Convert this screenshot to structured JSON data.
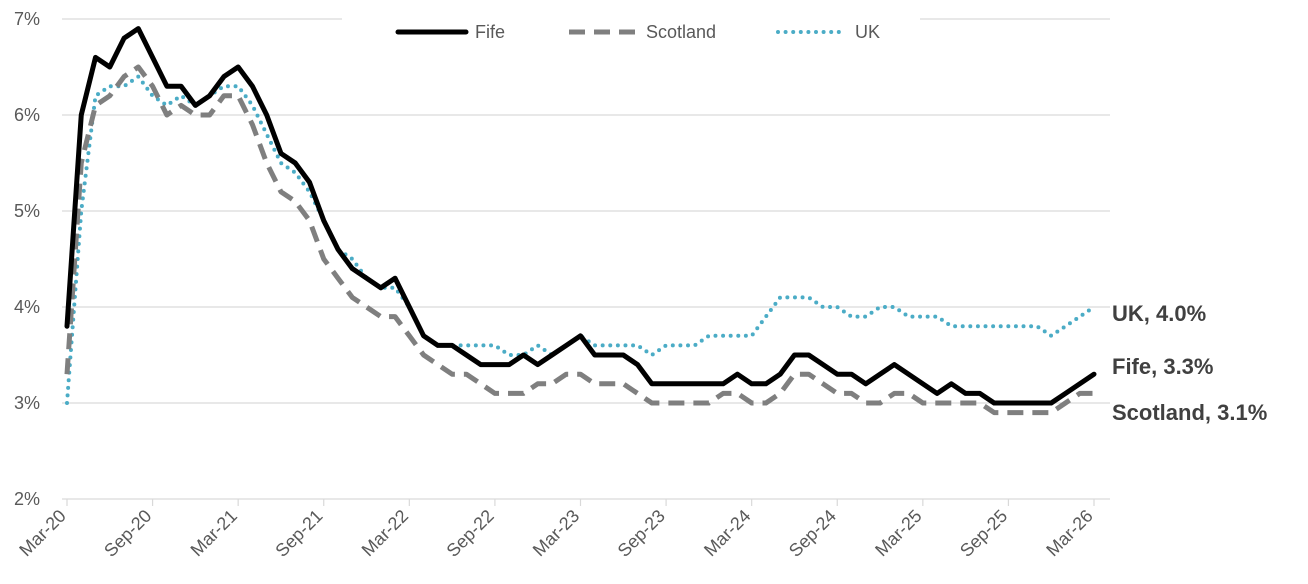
{
  "chart_data": {
    "type": "line",
    "title": "",
    "xlabel": "",
    "ylabel": "",
    "ylim": [
      2,
      7
    ],
    "y_ticks": [
      "2%",
      "3%",
      "4%",
      "5%",
      "6%",
      "7%"
    ],
    "x_ticks": [
      "Mar-20",
      "Sep-20",
      "Mar-21",
      "Sep-21",
      "Mar-22",
      "Sep-22",
      "Mar-23",
      "Sep-23",
      "Mar-24",
      "Sep-24",
      "Mar-25",
      "Sep-25",
      "Mar-26"
    ],
    "x_range": [
      "2020-03",
      "2026-03"
    ],
    "grid": "horizontal",
    "legend": "top-center",
    "colors": {
      "Fife": "#000000",
      "Scotland": "#7f7f7f",
      "UK": "#4bacc6",
      "grid": "#d9d9d9",
      "text": "#595959"
    },
    "series": [
      {
        "name": "Fife",
        "style": "solid",
        "x": [
          "2020-03",
          "2020-04",
          "2020-05",
          "2020-06",
          "2020-07",
          "2020-08",
          "2020-09",
          "2020-10",
          "2020-11",
          "2020-12",
          "2021-01",
          "2021-02",
          "2021-03",
          "2021-04",
          "2021-05",
          "2021-06",
          "2021-07",
          "2021-08",
          "2021-09",
          "2021-10",
          "2021-11",
          "2021-12",
          "2022-01",
          "2022-02",
          "2022-03",
          "2022-04",
          "2022-05",
          "2022-06",
          "2022-07",
          "2022-08",
          "2022-09",
          "2022-10",
          "2022-11",
          "2022-12",
          "2023-01",
          "2023-02",
          "2023-03",
          "2023-04",
          "2023-05",
          "2023-06",
          "2023-07",
          "2023-08",
          "2023-09",
          "2023-10",
          "2023-11",
          "2023-12",
          "2024-01",
          "2024-02",
          "2024-03",
          "2024-04",
          "2024-05",
          "2024-06",
          "2024-07",
          "2024-08",
          "2024-09",
          "2024-10",
          "2024-11",
          "2024-12",
          "2025-01",
          "2025-02",
          "2025-03",
          "2025-04",
          "2025-05",
          "2025-06",
          "2025-07",
          "2025-08",
          "2025-09",
          "2025-10",
          "2025-11",
          "2025-12",
          "2026-01",
          "2026-02",
          "2026-03"
        ],
        "values": [
          3.8,
          6.0,
          6.6,
          6.5,
          6.8,
          6.9,
          6.6,
          6.3,
          6.3,
          6.1,
          6.2,
          6.4,
          6.5,
          6.3,
          6.0,
          5.6,
          5.5,
          5.3,
          4.9,
          4.6,
          4.4,
          4.3,
          4.2,
          4.3,
          4.0,
          3.7,
          3.6,
          3.6,
          3.5,
          3.4,
          3.4,
          3.4,
          3.5,
          3.4,
          3.5,
          3.6,
          3.7,
          3.5,
          3.5,
          3.5,
          3.4,
          3.2,
          3.2,
          3.2,
          3.2,
          3.2,
          3.2,
          3.3,
          3.2,
          3.2,
          3.3,
          3.5,
          3.5,
          3.4,
          3.3,
          3.3,
          3.2,
          3.3,
          3.4,
          3.3,
          3.2,
          3.1,
          3.2,
          3.1,
          3.1,
          3.0,
          3.0,
          3.0,
          3.0,
          3.0,
          3.1,
          3.2,
          3.3
        ],
        "end_label": "Fife, 3.3%"
      },
      {
        "name": "Scotland",
        "style": "dashed",
        "x": [
          "2020-03",
          "2020-04",
          "2020-05",
          "2020-06",
          "2020-07",
          "2020-08",
          "2020-09",
          "2020-10",
          "2020-11",
          "2020-12",
          "2021-01",
          "2021-02",
          "2021-03",
          "2021-04",
          "2021-05",
          "2021-06",
          "2021-07",
          "2021-08",
          "2021-09",
          "2021-10",
          "2021-11",
          "2021-12",
          "2022-01",
          "2022-02",
          "2022-03",
          "2022-04",
          "2022-05",
          "2022-06",
          "2022-07",
          "2022-08",
          "2022-09",
          "2022-10",
          "2022-11",
          "2022-12",
          "2023-01",
          "2023-02",
          "2023-03",
          "2023-04",
          "2023-05",
          "2023-06",
          "2023-07",
          "2023-08",
          "2023-09",
          "2023-10",
          "2023-11",
          "2023-12",
          "2024-01",
          "2024-02",
          "2024-03",
          "2024-04",
          "2024-05",
          "2024-06",
          "2024-07",
          "2024-08",
          "2024-09",
          "2024-10",
          "2024-11",
          "2024-12",
          "2025-01",
          "2025-02",
          "2025-03",
          "2025-04",
          "2025-05",
          "2025-06",
          "2025-07",
          "2025-08",
          "2025-09",
          "2025-10",
          "2025-11",
          "2025-12",
          "2026-01",
          "2026-02",
          "2026-03"
        ],
        "values": [
          3.3,
          5.5,
          6.1,
          6.2,
          6.4,
          6.5,
          6.3,
          6.0,
          6.1,
          6.0,
          6.0,
          6.2,
          6.2,
          5.9,
          5.5,
          5.2,
          5.1,
          4.9,
          4.5,
          4.3,
          4.1,
          4.0,
          3.9,
          3.9,
          3.7,
          3.5,
          3.4,
          3.3,
          3.3,
          3.2,
          3.1,
          3.1,
          3.1,
          3.2,
          3.2,
          3.3,
          3.3,
          3.2,
          3.2,
          3.2,
          3.1,
          3.0,
          3.0,
          3.0,
          3.0,
          3.0,
          3.1,
          3.1,
          3.0,
          3.0,
          3.1,
          3.3,
          3.3,
          3.2,
          3.1,
          3.1,
          3.0,
          3.0,
          3.1,
          3.1,
          3.0,
          3.0,
          3.0,
          3.0,
          3.0,
          2.9,
          2.9,
          2.9,
          2.9,
          2.9,
          3.0,
          3.1,
          3.1
        ],
        "end_label": "Scotland, 3.1%"
      },
      {
        "name": "UK",
        "style": "dotted",
        "x": [
          "2020-03",
          "2020-04",
          "2020-05",
          "2020-06",
          "2020-07",
          "2020-08",
          "2020-09",
          "2020-10",
          "2020-11",
          "2020-12",
          "2021-01",
          "2021-02",
          "2021-03",
          "2021-04",
          "2021-05",
          "2021-06",
          "2021-07",
          "2021-08",
          "2021-09",
          "2021-10",
          "2021-11",
          "2021-12",
          "2022-01",
          "2022-02",
          "2022-03",
          "2022-04",
          "2022-05",
          "2022-06",
          "2022-07",
          "2022-08",
          "2022-09",
          "2022-10",
          "2022-11",
          "2022-12",
          "2023-01",
          "2023-02",
          "2023-03",
          "2023-04",
          "2023-05",
          "2023-06",
          "2023-07",
          "2023-08",
          "2023-09",
          "2023-10",
          "2023-11",
          "2023-12",
          "2024-01",
          "2024-02",
          "2024-03",
          "2024-04",
          "2024-05",
          "2024-06",
          "2024-07",
          "2024-08",
          "2024-09",
          "2024-10",
          "2024-11",
          "2024-12",
          "2025-01",
          "2025-02",
          "2025-03",
          "2025-04",
          "2025-05",
          "2025-06",
          "2025-07",
          "2025-08",
          "2025-09",
          "2025-10",
          "2025-11",
          "2025-12",
          "2026-01",
          "2026-02",
          "2026-03"
        ],
        "values": [
          3.0,
          5.0,
          6.2,
          6.3,
          6.3,
          6.4,
          6.2,
          6.1,
          6.2,
          6.1,
          6.2,
          6.3,
          6.3,
          6.1,
          5.8,
          5.5,
          5.4,
          5.2,
          4.9,
          4.6,
          4.5,
          4.3,
          4.2,
          4.2,
          4.0,
          3.7,
          3.6,
          3.6,
          3.6,
          3.6,
          3.6,
          3.5,
          3.5,
          3.6,
          3.5,
          3.6,
          3.7,
          3.6,
          3.6,
          3.6,
          3.6,
          3.5,
          3.6,
          3.6,
          3.6,
          3.7,
          3.7,
          3.7,
          3.7,
          3.9,
          4.1,
          4.1,
          4.1,
          4.0,
          4.0,
          3.9,
          3.9,
          4.0,
          4.0,
          3.9,
          3.9,
          3.9,
          3.8,
          3.8,
          3.8,
          3.8,
          3.8,
          3.8,
          3.8,
          3.7,
          3.8,
          3.9,
          4.0
        ],
        "end_label": "UK, 4.0%"
      }
    ]
  }
}
